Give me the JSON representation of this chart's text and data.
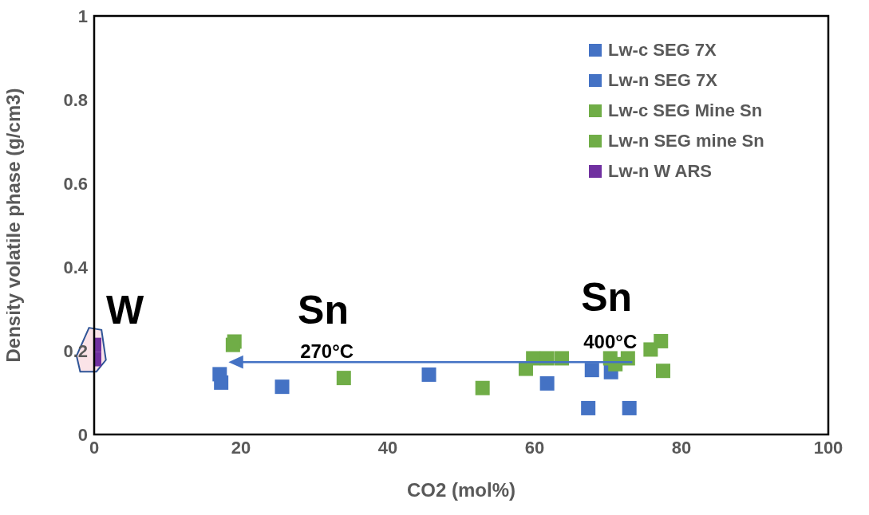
{
  "chart_data": {
    "type": "scatter",
    "xlabel": "CO2 (mol%)",
    "ylabel": "Density volatile phase (g/cm3)",
    "xlim": [
      0,
      100
    ],
    "xticks": [
      0,
      20,
      40,
      60,
      80,
      100
    ],
    "ylim": [
      0,
      1
    ],
    "yticks": [
      0,
      0.2,
      0.4,
      0.6,
      0.8,
      1
    ],
    "grid": false,
    "legend": "top right",
    "marker": "square",
    "series": [
      {
        "name": "Lw-c SEG 7X",
        "color": "#4472c4",
        "x": [
          45.6,
          61.7,
          67.8,
          70.4,
          67.3,
          72.9
        ],
        "values": [
          0.143,
          0.122,
          0.154,
          0.149,
          0.063,
          0.063
        ]
      },
      {
        "name": "Lw-n SEG 7X",
        "color": "#4472c4",
        "x": [
          17.1,
          17.3,
          25.6
        ],
        "values": [
          0.144,
          0.124,
          0.114
        ]
      },
      {
        "name": "Lw-c SEG Mine Sn",
        "color": "#70ad47",
        "x": [
          52.9,
          58.8,
          59.8,
          61.7,
          63.7,
          70.3,
          71.0,
          72.7,
          75.8,
          77.2,
          77.5
        ],
        "values": [
          0.111,
          0.157,
          0.182,
          0.182,
          0.182,
          0.182,
          0.168,
          0.182,
          0.203,
          0.223,
          0.152
        ]
      },
      {
        "name": "Lw-n SEG mine Sn",
        "color": "#70ad47",
        "x": [
          19.1,
          18.9,
          34.0
        ],
        "values": [
          0.222,
          0.214,
          0.135
        ]
      },
      {
        "name": "Lw-n W ARS",
        "color": "#7030a0",
        "x": [
          0,
          0
        ],
        "values": [
          0.214,
          0.18
        ]
      }
    ],
    "annotations": [
      "W",
      "Sn",
      "270°C",
      "Sn",
      "400°C"
    ]
  }
}
